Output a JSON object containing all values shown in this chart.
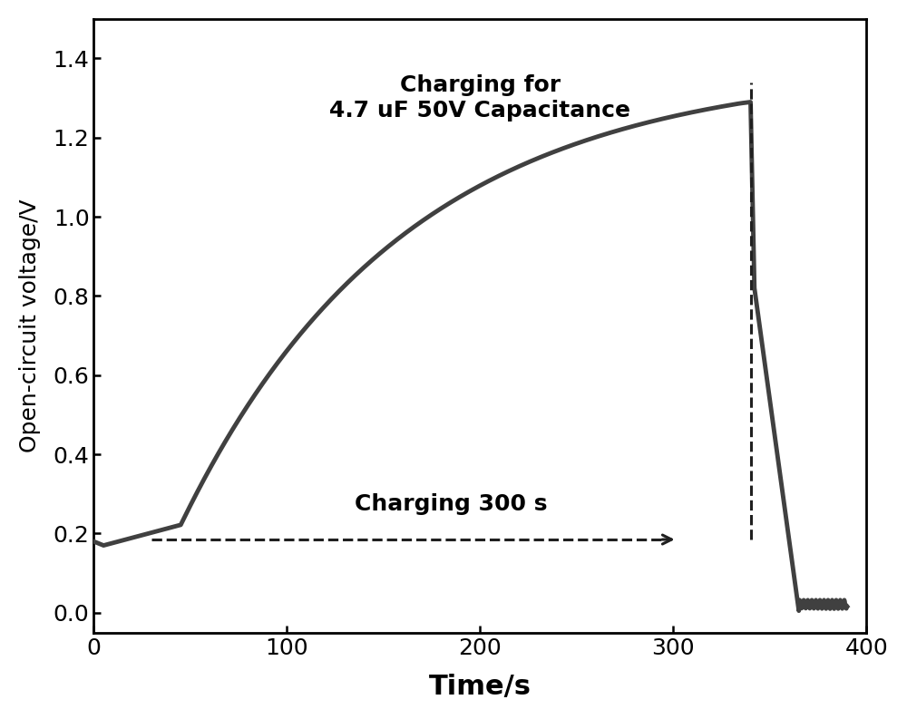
{
  "title": "",
  "xlabel": "Time/s",
  "ylabel": "Open-circuit voltage/V",
  "xlim": [
    0,
    400
  ],
  "ylim": [
    -0.05,
    1.5
  ],
  "yticks": [
    0.0,
    0.2,
    0.4,
    0.6,
    0.8,
    1.0,
    1.2,
    1.4
  ],
  "xticks": [
    0,
    100,
    200,
    300,
    400
  ],
  "annotation1": "Charging for\n4.7 uF 50V Capacitance",
  "annotation2": "Charging 300 s",
  "line_color": "#404040",
  "line_width": 3.5,
  "dashed_color": "#202020",
  "background_color": "#ffffff",
  "xlabel_fontsize": 22,
  "ylabel_fontsize": 18,
  "tick_fontsize": 18,
  "annotation_fontsize": 18
}
